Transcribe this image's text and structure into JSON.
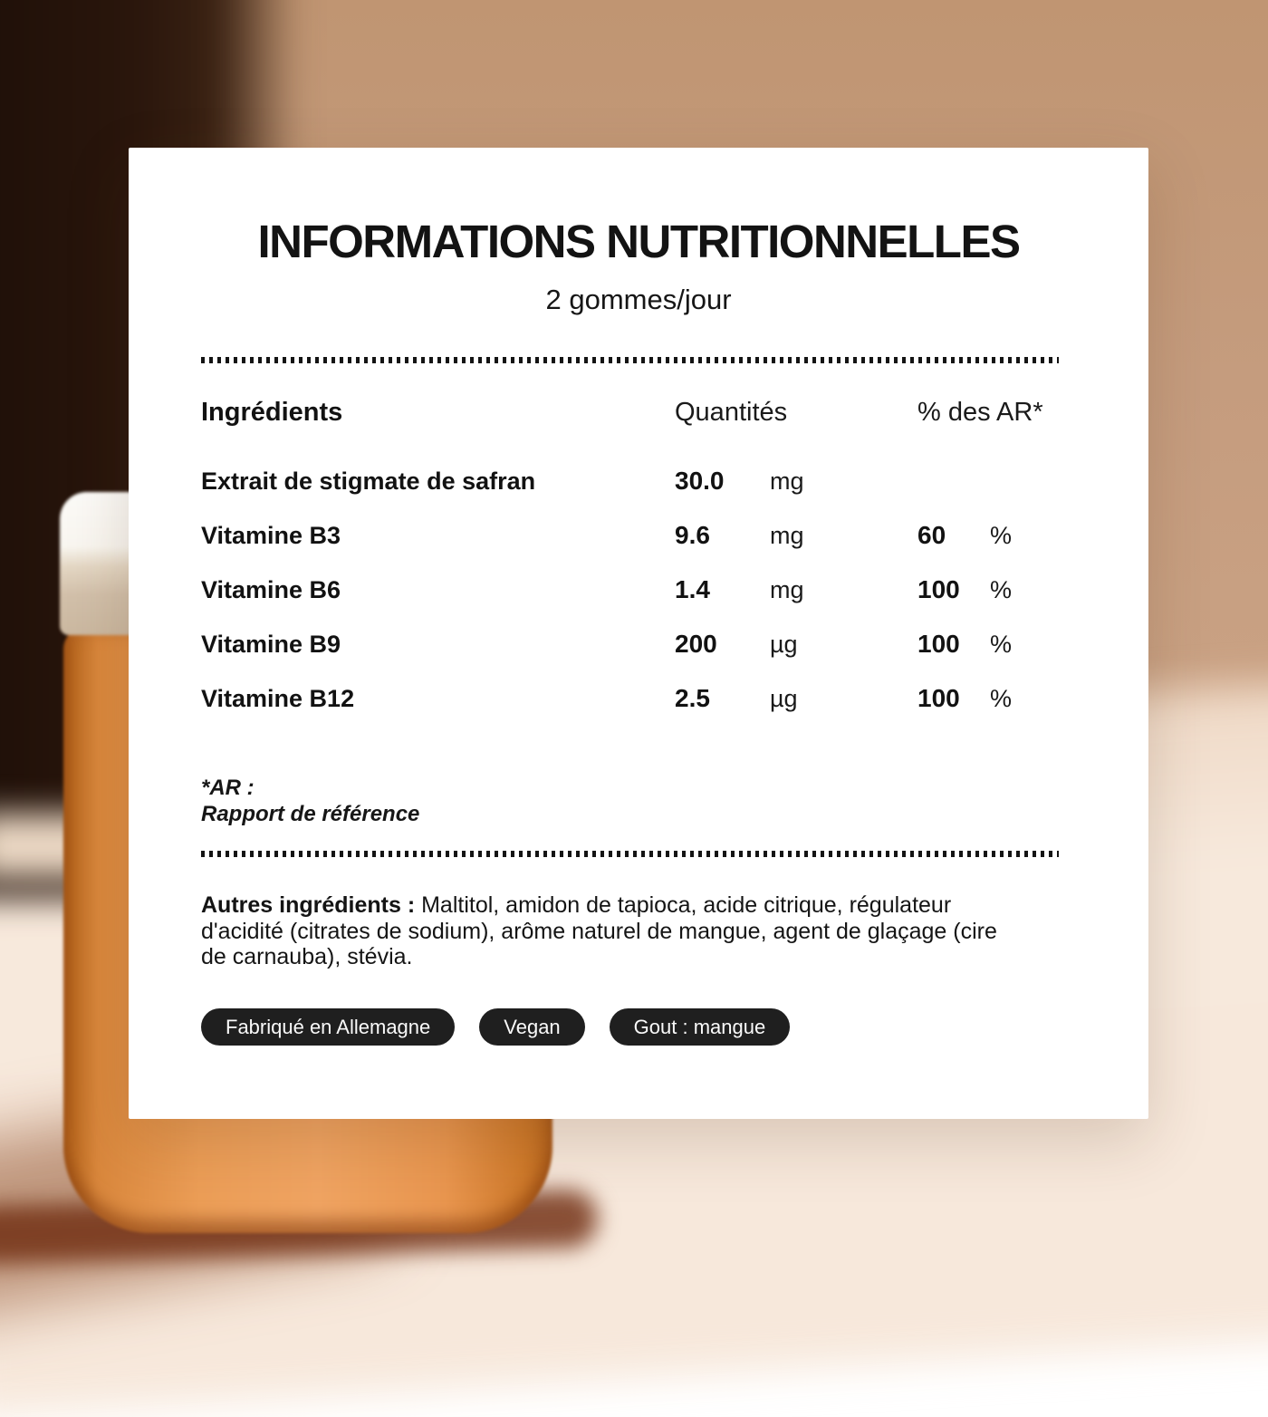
{
  "panel": {
    "title": "INFORMATIONS NUTRITIONNELLES",
    "subtitle": "2 gommes/jour",
    "table": {
      "headers": {
        "ingredients": "Ingrédients",
        "quantities": "Quantités",
        "percent_ar": "% des AR*"
      },
      "rows": [
        {
          "label": "Extrait de stigmate de safran",
          "value": "30.0",
          "unit": "mg",
          "percent": "",
          "percent_sign": ""
        },
        {
          "label": "Vitamine B3",
          "value": "9.6",
          "unit": "mg",
          "percent": "60",
          "percent_sign": "%"
        },
        {
          "label": "Vitamine B6",
          "value": "1.4",
          "unit": "mg",
          "percent": "100",
          "percent_sign": "%"
        },
        {
          "label": "Vitamine B9",
          "value": "200",
          "unit": "µg",
          "percent": "100",
          "percent_sign": "%"
        },
        {
          "label": "Vitamine B12",
          "value": "2.5",
          "unit": "µg",
          "percent": "100",
          "percent_sign": "%"
        }
      ]
    },
    "footnote_line1": "*AR :",
    "footnote_line2": "Rapport de référence",
    "other_ingredients_label": "Autres ingrédients :",
    "other_ingredients_text": " Maltitol, amidon de tapioca, acide citrique, régulateur d'acidité (citrates de sodium), arôme naturel de mangue, agent de glaçage (cire de carnauba), stévia.",
    "badges": [
      "Fabriqué en Allemagne",
      "Vegan",
      "Gout : mangue"
    ]
  },
  "colors": {
    "card_background": "#ffffff",
    "text": "#121212",
    "badge_background": "#1f1f1f",
    "badge_text": "#fafafa",
    "bottle_orange": "#ec9e57",
    "bottle_cap": "#f9f6f0",
    "wall_dark_brown": "#2a160c",
    "wall_tan": "#c59c7e",
    "floor_cream": "#f7e9dc"
  }
}
